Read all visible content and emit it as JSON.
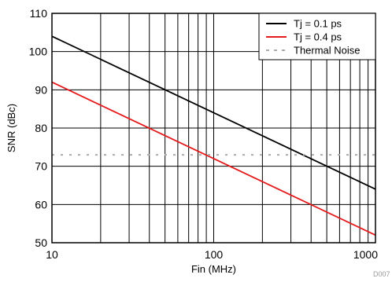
{
  "chart_data": {
    "type": "line",
    "title": "",
    "xlabel": "Fin (MHz)",
    "ylabel": "SNR (dBc)",
    "x_scale": "log",
    "xlim": [
      10,
      1000
    ],
    "ylim": [
      50,
      110
    ],
    "x_ticks": [
      10,
      100,
      1000
    ],
    "x_tick_labels": [
      "10",
      "100",
      "1000"
    ],
    "y_ticks": [
      50,
      60,
      70,
      80,
      90,
      100,
      110
    ],
    "y_tick_labels": [
      "50",
      "60",
      "70",
      "80",
      "90",
      "100",
      "110"
    ],
    "grid": true,
    "legend_position": "top-right",
    "series": [
      {
        "name": "Tj = 0.1 ps",
        "color": "#000000",
        "style": "solid",
        "x": [
          10,
          1000
        ],
        "y": [
          104,
          64
        ]
      },
      {
        "name": "Tj = 0.4 ps",
        "color": "#e41a1c",
        "style": "solid",
        "x": [
          10,
          1000
        ],
        "y": [
          92,
          52
        ]
      },
      {
        "name": "Thermal Noise",
        "color": "#aaaaaa",
        "style": "dashed",
        "x": [
          10,
          1000
        ],
        "y": [
          73,
          73
        ]
      }
    ],
    "footnote": "D007"
  }
}
